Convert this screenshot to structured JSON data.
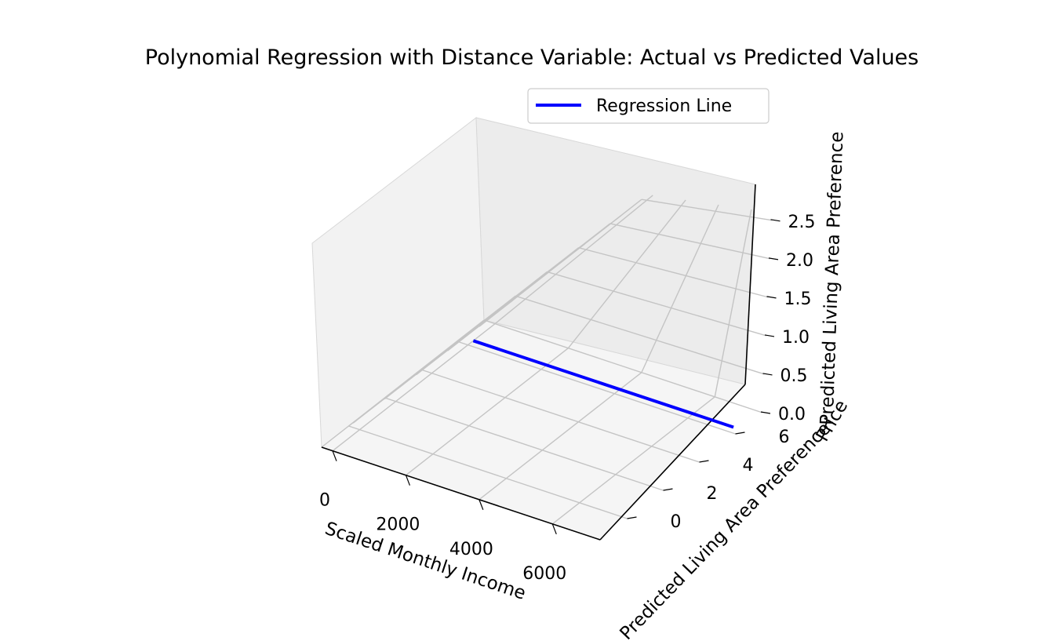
{
  "chart_data": {
    "type": "line",
    "projection": "3d",
    "title": "Polynomial Regression with Distance Variable: Actual vs Predicted Values",
    "xlabel": "Scaled Monthly Income",
    "ylabel": "Predicted Living Area Preference",
    "zlabel": "Predicted Living Area Preference",
    "zlabel_extra": "Price",
    "xticks": [
      "0",
      "2000",
      "4000",
      "6000"
    ],
    "yticks": [
      "0",
      "2",
      "4",
      "6"
    ],
    "zticks": [
      "0.0",
      "0.5",
      "1.0",
      "1.5",
      "2.0",
      "2.5"
    ],
    "xlim": [
      -300,
      7300
    ],
    "ylim": [
      -1.5,
      7.5
    ],
    "zlim": [
      0,
      2.6
    ],
    "grid": true,
    "legend": {
      "position": "top-right",
      "entries": [
        "Regression Line"
      ]
    },
    "series": [
      {
        "name": "Regression Line",
        "color": "#0000ff",
        "points": [
          {
            "x": 0,
            "y": 6.3,
            "z": 0
          },
          {
            "x": 7100,
            "y": 6.3,
            "z": 0
          }
        ]
      }
    ]
  }
}
